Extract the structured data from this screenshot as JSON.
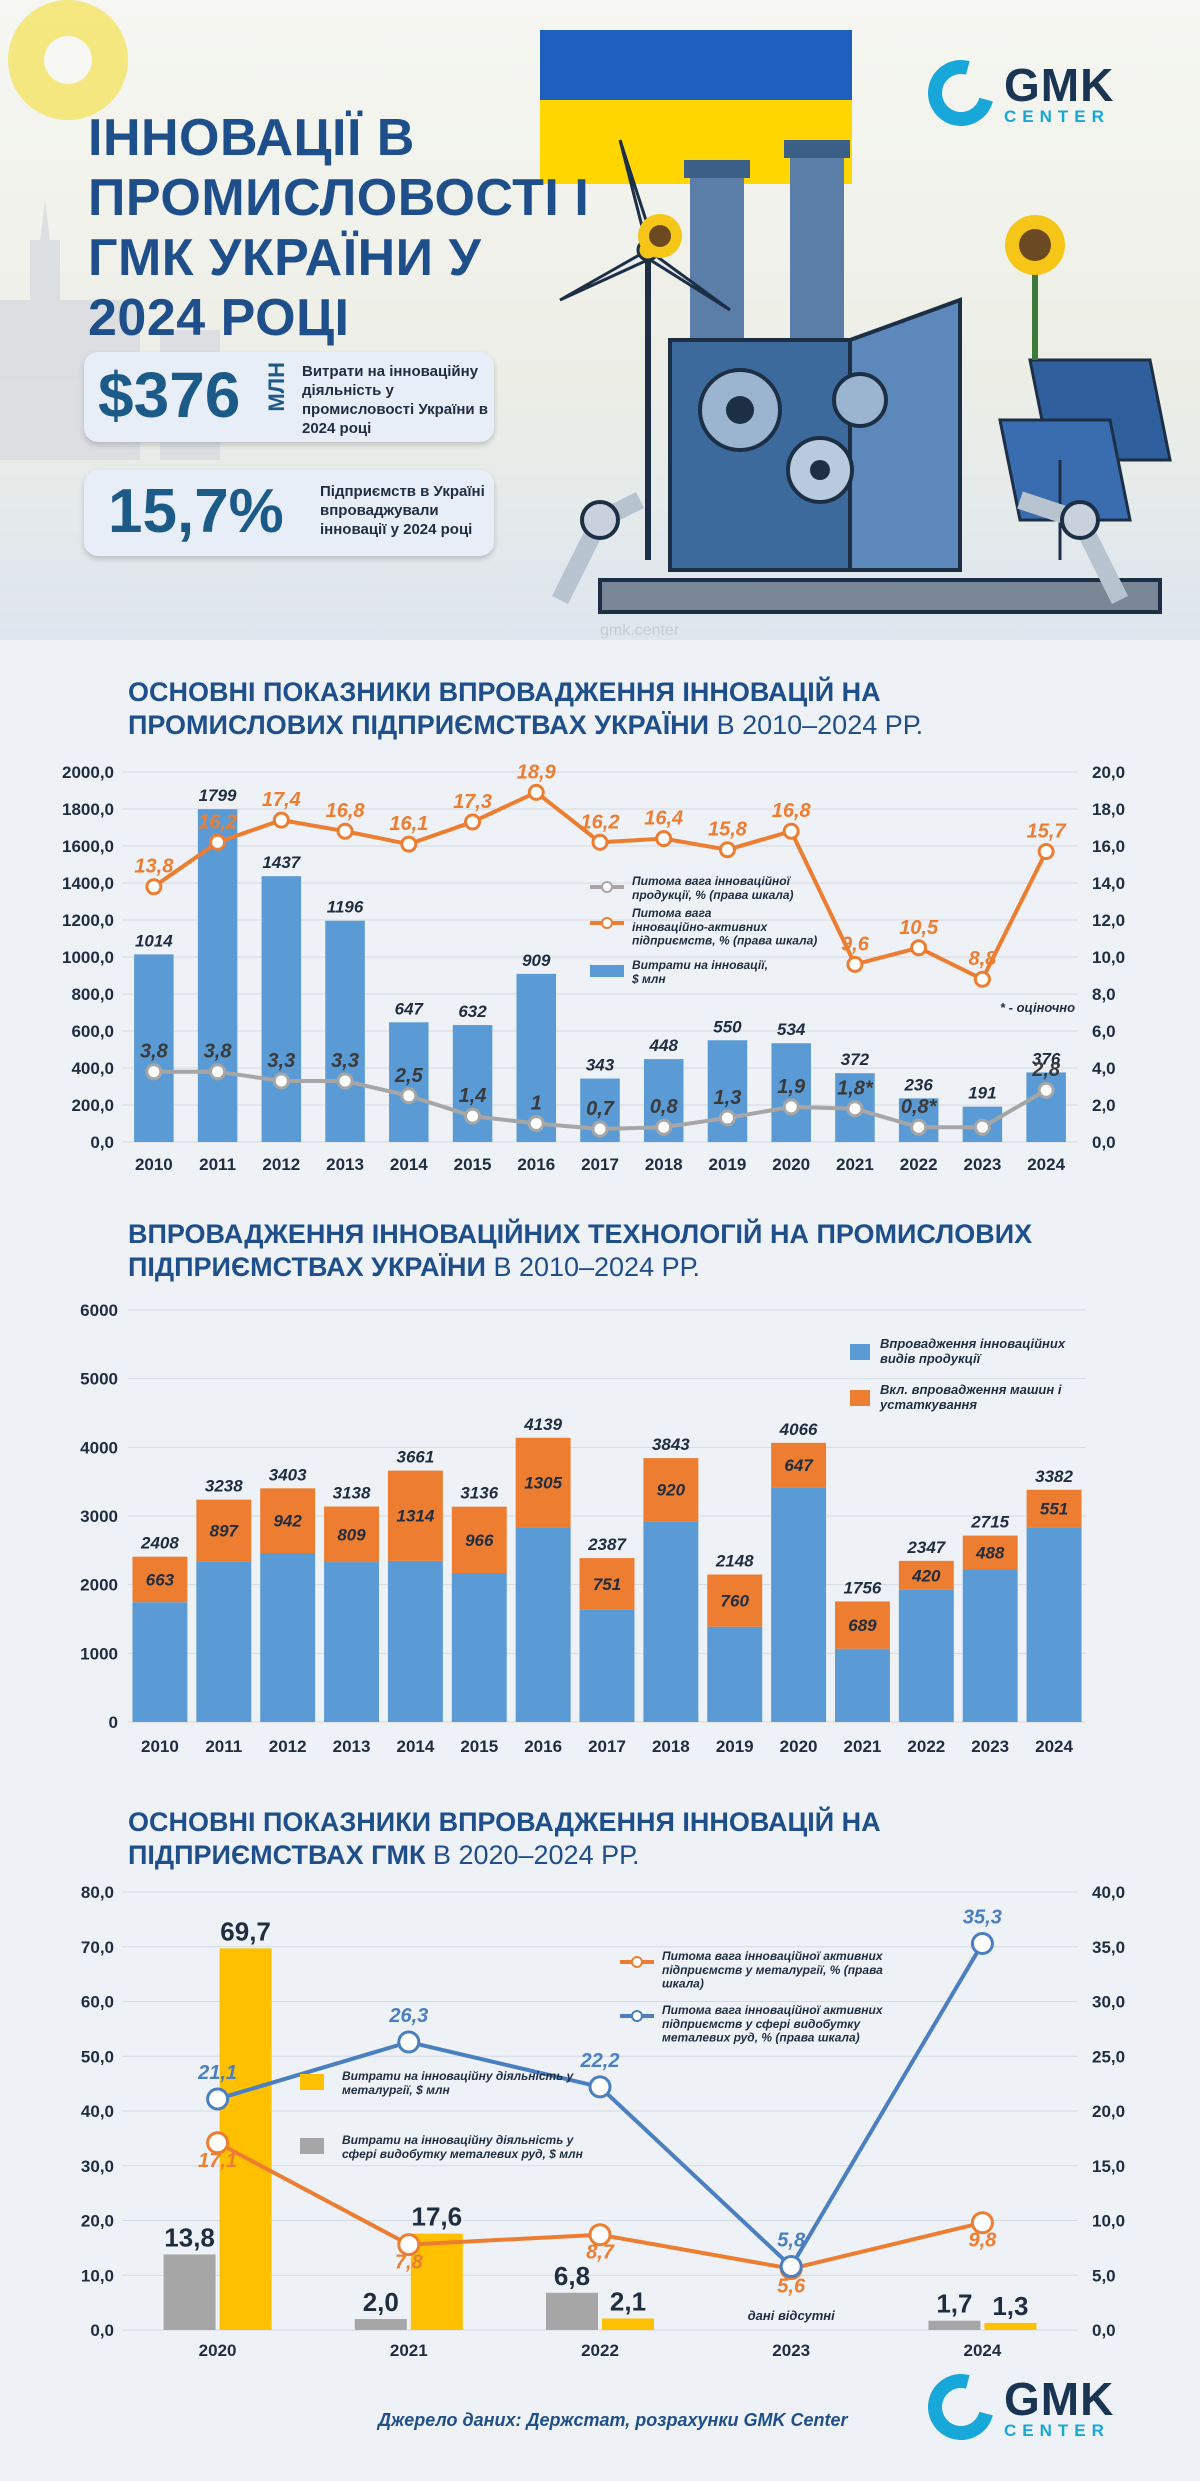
{
  "hero": {
    "title": "ІННОВАЦІЇ В ПРОМИСЛОВОСТІ І ГМК УКРАЇНИ У 2024 РОЦІ",
    "stat1": {
      "value": "$376",
      "unit": "МЛН",
      "desc": "Витрати на інноваційну діяльність у промисловості України в 2024 році"
    },
    "stat2": {
      "value": "15,7%",
      "desc": "Підприємств в Україні впроваджували інновації у 2024 році"
    }
  },
  "logo": {
    "main": "GMK",
    "sub": "CENTER"
  },
  "watermark": "gmk.center",
  "section1": {
    "title_bold": "ОСНОВНІ ПОКАЗНИКИ ВПРОВАДЖЕННЯ ІННОВАЦІЙ НА ПРОМИСЛОВИХ ПІДПРИЄМСТВАХ УКРАЇНИ",
    "title_light": "В 2010–2024 РР."
  },
  "section2": {
    "title_bold": "ВПРОВАДЖЕННЯ ІННОВАЦІЙНИХ ТЕХНОЛОГІЙ НА ПРОМИСЛОВИХ ПІДПРИЄМСТВАХ УКРАЇНИ",
    "title_light": "В 2010–2024 РР."
  },
  "section3": {
    "title_bold": "ОСНОВНІ ПОКАЗНИКИ ВПРОВАДЖЕННЯ ІННОВАЦІЙ НА ПІДПРИЄМСТВАХ ГМК",
    "title_light": "В 2020–2024 РР."
  },
  "source": "Джерело даних: Держстат, розрахунки GMK Center",
  "colors": {
    "blue": "#5b9bd5",
    "orange": "#ed7d31",
    "gray": "#a6a6a6",
    "yellow": "#ffc000",
    "steel": "#4a7fc1",
    "title": "#1f4f8a"
  },
  "chart_data": [
    {
      "type": "bar",
      "categories": [
        "2010",
        "2011",
        "2012",
        "2013",
        "2014",
        "2015",
        "2016",
        "2017",
        "2018",
        "2019",
        "2020",
        "2021",
        "2022",
        "2023",
        "2024"
      ],
      "series": [
        {
          "name": "Витрати на інновації, $ млн",
          "axis": "left",
          "kind": "bar",
          "values": [
            1014,
            1799,
            1437,
            1196,
            647,
            632,
            909,
            343,
            448,
            550,
            534,
            372,
            236,
            191,
            376
          ]
        },
        {
          "name": "Питома вага інноваційно-активних підприємств, % (права шкала)",
          "axis": "right",
          "kind": "line",
          "values": [
            13.8,
            16.2,
            17.4,
            16.8,
            16.1,
            17.3,
            18.9,
            16.2,
            16.4,
            15.8,
            16.8,
            9.6,
            10.5,
            8.8,
            15.7
          ],
          "labels": [
            "13,8",
            "16,2",
            "17,4",
            "16,8",
            "16,1",
            "17,3",
            "18,9",
            "16,2",
            "16,4",
            "15,8",
            "16,8",
            "9,6",
            "10,5",
            "8,8",
            "15,7"
          ]
        },
        {
          "name": "Питома вага інноваційної продукції, % (права шкала)",
          "axis": "right",
          "kind": "line",
          "values": [
            3.8,
            3.8,
            3.3,
            3.3,
            2.5,
            1.4,
            1,
            0.7,
            0.8,
            1.3,
            1.9,
            1.8,
            0.8,
            0.8,
            2.8
          ],
          "labels": [
            "3,8",
            "3,8",
            "3,3",
            "3,3",
            "2,5",
            "1,4",
            "1",
            "0,7",
            "0,8",
            "1,3",
            "1,9",
            "1,8*",
            "0,8*",
            "",
            "2,8"
          ]
        }
      ],
      "bar_labels": [
        "1014",
        "1799",
        "1437",
        "1196",
        "647",
        "632",
        "909",
        "343",
        "448",
        "550",
        "534",
        "372",
        "236",
        "191",
        "376"
      ],
      "left_ticks": [
        "0,0",
        "200,0",
        "400,0",
        "600,0",
        "800,0",
        "1000,0",
        "1200,0",
        "1400,0",
        "1600,0",
        "1800,0",
        "2000,0"
      ],
      "right_ticks": [
        "0,0",
        "2,0",
        "4,0",
        "6,0",
        "8,0",
        "10,0",
        "12,0",
        "14,0",
        "16,0",
        "18,0",
        "20,0"
      ],
      "ylim": [
        0,
        2000
      ],
      "y2lim": [
        0,
        20
      ],
      "legend_position": "right",
      "annotation": "* - оціночно"
    },
    {
      "type": "bar",
      "stacked": true,
      "categories": [
        "2010",
        "2011",
        "2012",
        "2013",
        "2014",
        "2015",
        "2016",
        "2017",
        "2018",
        "2019",
        "2020",
        "2021",
        "2022",
        "2023",
        "2024"
      ],
      "series": [
        {
          "name": "Впровадження інноваційних видів продукції",
          "values": [
            2408,
            3238,
            3403,
            3138,
            3661,
            3136,
            4139,
            2387,
            3843,
            2148,
            4066,
            1756,
            2347,
            2715,
            3382
          ]
        },
        {
          "name": "Вкл. впровадження машин і устаткування",
          "values": [
            663,
            897,
            942,
            809,
            1314,
            966,
            1305,
            751,
            920,
            760,
            647,
            689,
            420,
            488,
            551
          ]
        }
      ],
      "y_ticks": [
        "0",
        "1000",
        "2000",
        "3000",
        "4000",
        "5000",
        "6000"
      ],
      "ylim": [
        0,
        6000
      ],
      "legend_position": "top-right"
    },
    {
      "type": "bar",
      "categories": [
        "2020",
        "2021",
        "2022",
        "2023",
        "2024"
      ],
      "series": [
        {
          "name": "Витрати на інноваційну діяльність у металургії, $ млн",
          "axis": "left",
          "kind": "bar",
          "values": [
            69.7,
            17.6,
            2.1,
            null,
            1.3
          ],
          "labels": [
            "69,7",
            "17,6",
            "2,1",
            "",
            "1,3"
          ]
        },
        {
          "name": "Витрати на інноваційну діяльність у сфері видобутку металевих руд, $ млн",
          "axis": "left",
          "kind": "bar",
          "values": [
            13.8,
            2.0,
            6.8,
            null,
            1.7
          ],
          "labels": [
            "13,8",
            "2,0",
            "6,8",
            "",
            "1,7"
          ]
        },
        {
          "name": "Питома вага інноваційної активних підприємств у металургії, % (права шкала)",
          "axis": "right",
          "kind": "line",
          "values": [
            17.1,
            7.8,
            8.7,
            5.6,
            9.8
          ],
          "labels": [
            "17,1",
            "7,8",
            "8,7",
            "5,6",
            "9,8"
          ]
        },
        {
          "name": "Питома вага інноваційної активних підприємств у сфері видобутку металевих руд, % (права шкала)",
          "axis": "right",
          "kind": "line",
          "values": [
            21.1,
            26.3,
            22.2,
            5.8,
            35.3
          ],
          "labels": [
            "21,1",
            "26,3",
            "22,2",
            "5,8",
            "35,3"
          ]
        }
      ],
      "left_ticks": [
        "0,0",
        "10,0",
        "20,0",
        "30,0",
        "40,0",
        "50,0",
        "60,0",
        "70,0",
        "80,0"
      ],
      "right_ticks": [
        "0,0",
        "5,0",
        "10,0",
        "15,0",
        "20,0",
        "25,0",
        "30,0",
        "35,0",
        "40,0"
      ],
      "ylim": [
        0,
        80
      ],
      "y2lim": [
        0,
        40
      ],
      "legend_position": "center",
      "annotation": "дані відсутні"
    }
  ]
}
